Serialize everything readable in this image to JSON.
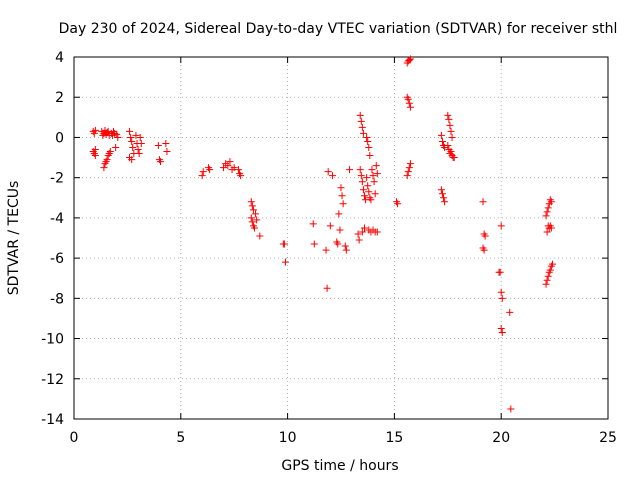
{
  "chart_data": {
    "type": "scatter",
    "title": "Day 230 of 2024, Sidereal Day-to-day VTEC variation (SDTVAR) for receiver sthl",
    "xlabel": "GPS time / hours",
    "ylabel": "SDTVAR / TECUs",
    "xlim": [
      0,
      25
    ],
    "ylim": [
      -14,
      4
    ],
    "xticks": [
      0,
      5,
      10,
      15,
      20,
      25
    ],
    "yticks": [
      -14,
      -12,
      -10,
      -8,
      -6,
      -4,
      -2,
      0,
      2,
      4
    ],
    "grid": true,
    "marker": "+",
    "color": "#ff0000",
    "series": [
      {
        "name": "SDTVAR",
        "points": [
          [
            0.9,
            0.3
          ],
          [
            0.95,
            0.2
          ],
          [
            1.0,
            0.35
          ],
          [
            0.9,
            -0.7
          ],
          [
            0.95,
            -0.8
          ],
          [
            1.0,
            -0.9
          ],
          [
            1.0,
            -0.6
          ],
          [
            1.3,
            0.3
          ],
          [
            1.35,
            0.1
          ],
          [
            1.4,
            0.2
          ],
          [
            1.45,
            0.35
          ],
          [
            1.5,
            0.15
          ],
          [
            1.55,
            0.25
          ],
          [
            1.6,
            0.3
          ],
          [
            1.65,
            0.1
          ],
          [
            1.4,
            -1.5
          ],
          [
            1.45,
            -1.3
          ],
          [
            1.5,
            -1.2
          ],
          [
            1.55,
            -1.1
          ],
          [
            1.6,
            -0.9
          ],
          [
            1.65,
            -0.8
          ],
          [
            1.7,
            -0.7
          ],
          [
            1.75,
            0.2
          ],
          [
            1.8,
            0.1
          ],
          [
            1.85,
            0.3
          ],
          [
            1.9,
            0.2
          ],
          [
            1.95,
            -0.5
          ],
          [
            2.0,
            0.15
          ],
          [
            2.05,
            0.0
          ],
          [
            2.6,
            0.3
          ],
          [
            2.65,
            0.0
          ],
          [
            2.7,
            -0.2
          ],
          [
            2.75,
            -0.5
          ],
          [
            2.8,
            -0.8
          ],
          [
            2.6,
            -1.0
          ],
          [
            2.7,
            -1.1
          ],
          [
            2.9,
            0.1
          ],
          [
            2.95,
            -0.3
          ],
          [
            3.0,
            -0.6
          ],
          [
            3.05,
            -0.8
          ],
          [
            3.1,
            0.0
          ],
          [
            3.15,
            -0.3
          ],
          [
            3.95,
            -0.4
          ],
          [
            4.0,
            -1.1
          ],
          [
            4.05,
            -1.2
          ],
          [
            4.3,
            -0.3
          ],
          [
            4.35,
            -0.7
          ],
          [
            6.0,
            -1.9
          ],
          [
            6.05,
            -1.7
          ],
          [
            6.3,
            -1.5
          ],
          [
            6.35,
            -1.6
          ],
          [
            7.0,
            -1.5
          ],
          [
            7.1,
            -1.3
          ],
          [
            7.2,
            -1.4
          ],
          [
            7.3,
            -1.2
          ],
          [
            7.4,
            -1.6
          ],
          [
            7.5,
            -1.5
          ],
          [
            7.7,
            -1.6
          ],
          [
            7.75,
            -1.8
          ],
          [
            7.8,
            -1.9
          ],
          [
            8.3,
            -3.2
          ],
          [
            8.35,
            -3.4
          ],
          [
            8.4,
            -3.6
          ],
          [
            8.3,
            -4.0
          ],
          [
            8.35,
            -4.2
          ],
          [
            8.4,
            -4.4
          ],
          [
            8.45,
            -4.5
          ],
          [
            8.5,
            -3.8
          ],
          [
            8.55,
            -4.1
          ],
          [
            8.7,
            -4.9
          ],
          [
            9.8,
            -5.3
          ],
          [
            9.85,
            -5.3
          ],
          [
            9.9,
            -6.2
          ],
          [
            11.2,
            -4.3
          ],
          [
            11.25,
            -5.3
          ],
          [
            11.8,
            -5.6
          ],
          [
            11.85,
            -7.5
          ],
          [
            11.9,
            -1.7
          ],
          [
            12.0,
            -4.4
          ],
          [
            12.1,
            -1.9
          ],
          [
            12.3,
            -5.2
          ],
          [
            12.35,
            -5.3
          ],
          [
            12.4,
            -3.8
          ],
          [
            12.45,
            -4.6
          ],
          [
            12.5,
            -2.5
          ],
          [
            12.55,
            -2.9
          ],
          [
            12.6,
            -3.3
          ],
          [
            12.7,
            -5.4
          ],
          [
            12.75,
            -5.6
          ],
          [
            12.9,
            -1.6
          ],
          [
            13.3,
            -4.8
          ],
          [
            13.35,
            -5.1
          ],
          [
            13.4,
            1.1
          ],
          [
            13.45,
            0.8
          ],
          [
            13.5,
            0.5
          ],
          [
            13.55,
            0.2
          ],
          [
            13.4,
            -1.6
          ],
          [
            13.45,
            -1.9
          ],
          [
            13.5,
            -2.2
          ],
          [
            13.55,
            -2.6
          ],
          [
            13.6,
            -2.9
          ],
          [
            13.65,
            -3.1
          ],
          [
            13.5,
            -4.7
          ],
          [
            13.6,
            -4.5
          ],
          [
            13.7,
            0.0
          ],
          [
            13.75,
            -0.2
          ],
          [
            13.8,
            -0.5
          ],
          [
            13.85,
            -0.9
          ],
          [
            13.7,
            -2.0
          ],
          [
            13.75,
            -2.4
          ],
          [
            13.8,
            -2.7
          ],
          [
            13.85,
            -3.0
          ],
          [
            13.9,
            -3.1
          ],
          [
            13.95,
            -1.6
          ],
          [
            14.0,
            -1.9
          ],
          [
            14.05,
            -2.2
          ],
          [
            14.1,
            -2.8
          ],
          [
            14.15,
            -1.4
          ],
          [
            14.2,
            -1.8
          ],
          [
            13.8,
            -4.6
          ],
          [
            13.9,
            -4.7
          ],
          [
            14.0,
            -4.6
          ],
          [
            14.1,
            -4.7
          ],
          [
            14.2,
            -4.7
          ],
          [
            15.1,
            -3.2
          ],
          [
            15.15,
            -3.3
          ],
          [
            15.6,
            3.7
          ],
          [
            15.65,
            3.8
          ],
          [
            15.7,
            3.85
          ],
          [
            15.75,
            3.9
          ],
          [
            15.6,
            2.0
          ],
          [
            15.65,
            1.9
          ],
          [
            15.7,
            1.7
          ],
          [
            15.75,
            1.5
          ],
          [
            15.6,
            -1.9
          ],
          [
            15.65,
            -1.7
          ],
          [
            15.7,
            -1.5
          ],
          [
            15.75,
            -1.3
          ],
          [
            17.2,
            -2.6
          ],
          [
            17.25,
            -2.8
          ],
          [
            17.3,
            -3.0
          ],
          [
            17.35,
            -3.2
          ],
          [
            17.2,
            0.1
          ],
          [
            17.25,
            -0.2
          ],
          [
            17.3,
            -0.4
          ],
          [
            17.35,
            -0.5
          ],
          [
            17.5,
            1.1
          ],
          [
            17.55,
            0.9
          ],
          [
            17.6,
            0.6
          ],
          [
            17.65,
            0.3
          ],
          [
            17.7,
            0.0
          ],
          [
            17.5,
            -0.4
          ],
          [
            17.55,
            -0.6
          ],
          [
            17.6,
            -0.8
          ],
          [
            17.65,
            -0.7
          ],
          [
            17.7,
            -0.9
          ],
          [
            17.75,
            -1.0
          ],
          [
            17.8,
            -1.0
          ],
          [
            19.15,
            -3.2
          ],
          [
            19.2,
            -4.8
          ],
          [
            19.25,
            -4.9
          ],
          [
            19.15,
            -5.5
          ],
          [
            19.2,
            -5.6
          ],
          [
            19.9,
            -6.7
          ],
          [
            19.95,
            -6.7
          ],
          [
            20.0,
            -4.4
          ],
          [
            20.0,
            -7.7
          ],
          [
            20.05,
            -8.0
          ],
          [
            20.0,
            -9.5
          ],
          [
            20.05,
            -9.7
          ],
          [
            20.4,
            -8.7
          ],
          [
            20.45,
            -13.5
          ],
          [
            22.1,
            -3.9
          ],
          [
            22.15,
            -3.7
          ],
          [
            22.2,
            -3.5
          ],
          [
            22.25,
            -3.3
          ],
          [
            22.3,
            -3.1
          ],
          [
            22.35,
            -3.2
          ],
          [
            22.15,
            -4.7
          ],
          [
            22.2,
            -4.4
          ],
          [
            22.25,
            -4.5
          ],
          [
            22.3,
            -4.4
          ],
          [
            22.35,
            -4.5
          ],
          [
            22.1,
            -7.3
          ],
          [
            22.15,
            -7.1
          ],
          [
            22.2,
            -6.9
          ],
          [
            22.25,
            -6.7
          ],
          [
            22.3,
            -6.6
          ],
          [
            22.35,
            -6.4
          ],
          [
            22.4,
            -6.3
          ]
        ]
      }
    ]
  }
}
